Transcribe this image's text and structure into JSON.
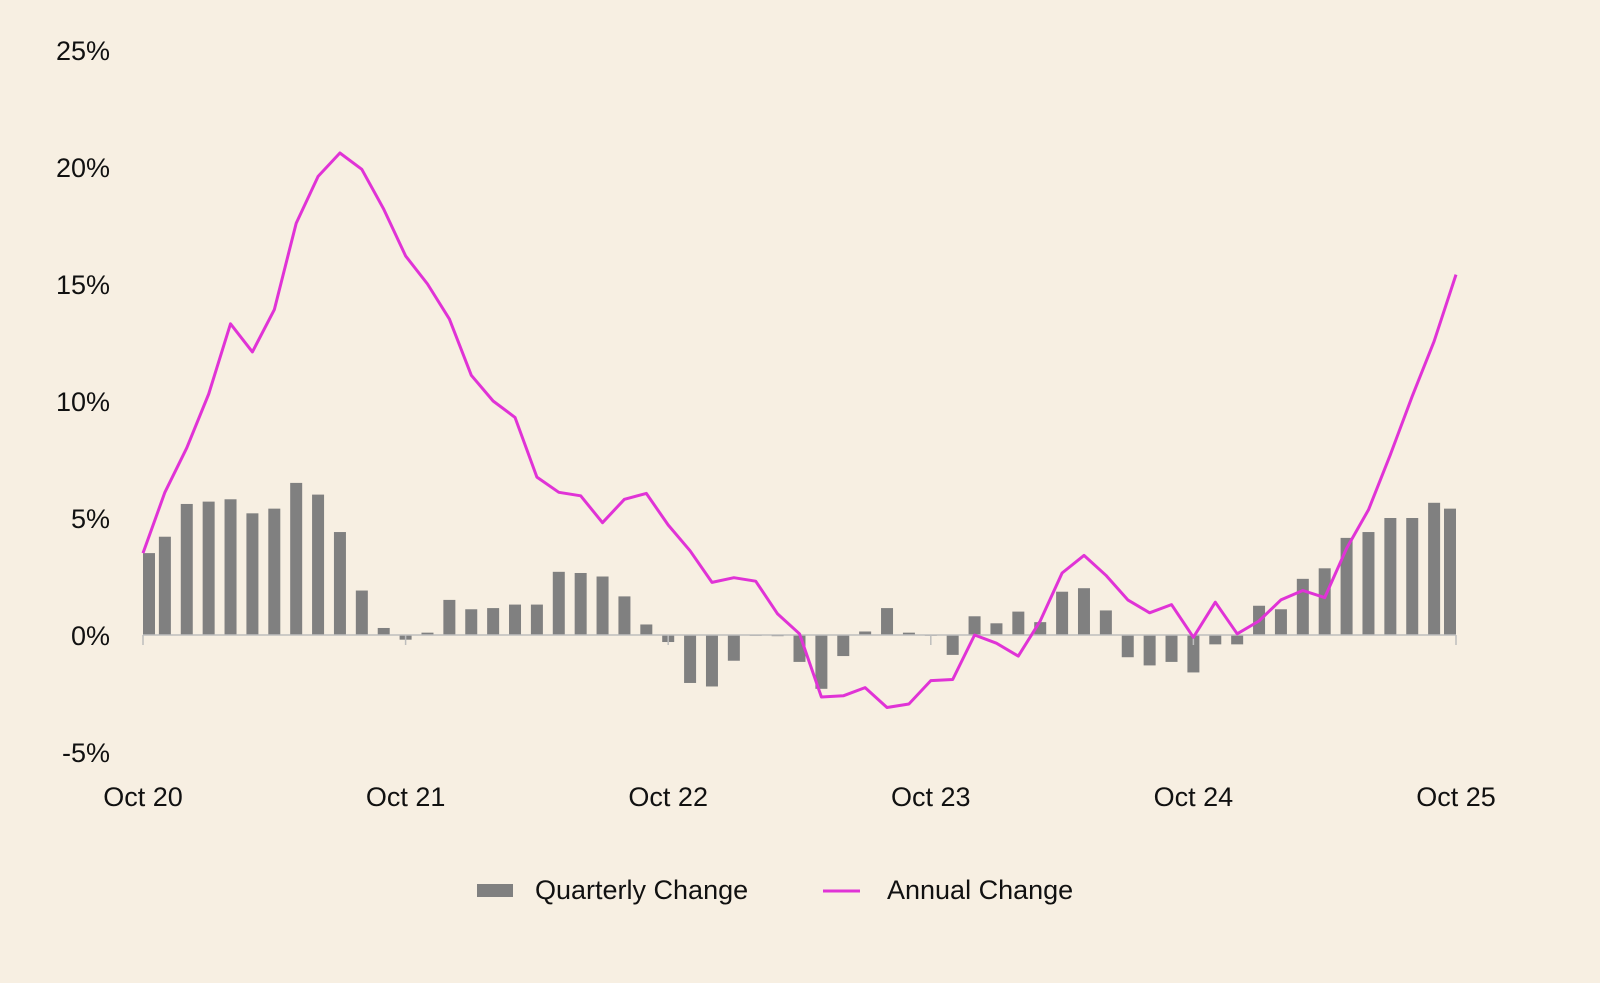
{
  "chart_data": {
    "type": "bar+line",
    "title": "",
    "xlabel": "",
    "ylabel": "",
    "ylim": [
      -5,
      25
    ],
    "y_ticks": [
      "25%",
      "20%",
      "15%",
      "10%",
      "5%",
      "0%",
      "-5%"
    ],
    "y_tick_values": [
      25,
      20,
      15,
      10,
      5,
      0,
      -5
    ],
    "x_ticks": [
      "Oct 20",
      "Oct 21",
      "Oct 22",
      "Oct 23",
      "Oct 24",
      "Oct 25"
    ],
    "x_tick_index": [
      0,
      12,
      24,
      36,
      48,
      60
    ],
    "legend_position": "bottom-center",
    "series": [
      {
        "name": "Quarterly Change",
        "type": "bar",
        "color": "#808080",
        "values": [
          3.5,
          4.2,
          5.6,
          5.7,
          5.8,
          5.2,
          5.4,
          6.5,
          6.0,
          4.4,
          1.9,
          0.3,
          -0.2,
          0.1,
          1.5,
          1.1,
          1.15,
          1.3,
          1.3,
          2.7,
          2.65,
          2.5,
          1.65,
          0.45,
          -0.3,
          -2.05,
          -2.2,
          -1.1,
          0.0,
          -0.05,
          -1.15,
          -2.3,
          -0.9,
          0.15,
          1.15,
          0.1,
          0.0,
          -0.85,
          0.8,
          0.5,
          1.0,
          0.55,
          1.85,
          2.0,
          1.05,
          -0.95,
          -1.3,
          -1.15,
          -1.6,
          -0.4,
          -0.4,
          1.25,
          1.1,
          2.4,
          2.85,
          4.15,
          4.4,
          5.0,
          5.0,
          5.65,
          5.4
        ]
      },
      {
        "name": "Annual Change",
        "type": "line",
        "color": "#e033d6",
        "values": [
          3.5,
          6.1,
          8.0,
          10.3,
          13.3,
          12.1,
          13.9,
          17.6,
          19.6,
          20.6,
          19.9,
          18.2,
          16.2,
          15.0,
          13.5,
          11.1,
          10.0,
          9.3,
          6.75,
          6.1,
          5.95,
          4.8,
          5.8,
          6.05,
          4.7,
          3.6,
          2.25,
          2.45,
          2.3,
          0.9,
          0.05,
          -2.65,
          -2.6,
          -2.25,
          -3.1,
          -2.95,
          -1.95,
          -1.9,
          0.0,
          -0.35,
          -0.9,
          0.6,
          2.65,
          3.4,
          2.55,
          1.5,
          0.95,
          1.3,
          -0.1,
          1.4,
          0.05,
          0.6,
          1.5,
          1.9,
          1.6,
          3.7,
          5.35,
          7.7,
          10.2,
          12.55,
          15.4
        ]
      }
    ]
  }
}
